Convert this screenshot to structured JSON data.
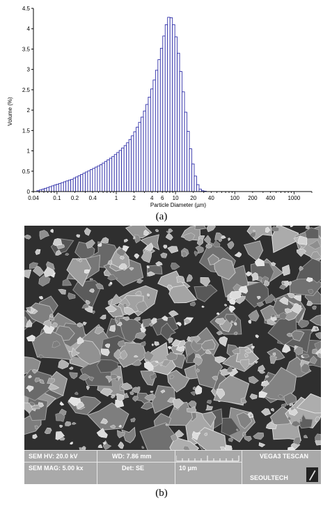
{
  "chart_data": {
    "type": "bar",
    "title": "",
    "xlabel": "Particle Diameter (µm)",
    "ylabel": "Volume (%)",
    "x_scale": "log",
    "xlim": [
      0.04,
      2000
    ],
    "ylim": [
      0,
      4.5
    ],
    "x_ticks": [
      0.04,
      0.1,
      0.2,
      0.4,
      1,
      2,
      4,
      6,
      10,
      20,
      40,
      100,
      200,
      400,
      1000
    ],
    "x_tick_labels": [
      "0.04",
      "0.1",
      "0.2",
      "0.4",
      "1",
      "2",
      "4",
      "6",
      "10",
      "20",
      "40",
      "100",
      "200",
      "400",
      "1000"
    ],
    "y_ticks": [
      0,
      0.5,
      1,
      1.5,
      2,
      2.5,
      3,
      3.5,
      4,
      4.5
    ],
    "y_tick_labels": [
      "0",
      "0.5",
      "1",
      "1.5",
      "2",
      "2.5",
      "3",
      "3.5",
      "4",
      "4.5"
    ],
    "grid": false,
    "bar_color": "#1a1aa0",
    "series": [
      {
        "x": [
          0.048,
          0.053,
          0.058,
          0.064,
          0.07,
          0.077,
          0.085,
          0.093,
          0.102,
          0.112,
          0.123,
          0.135,
          0.148,
          0.163,
          0.179,
          0.197,
          0.216,
          0.237,
          0.261,
          0.286,
          0.315,
          0.345,
          0.38,
          0.417,
          0.458,
          0.503,
          0.553,
          0.607,
          0.667,
          0.733,
          0.805,
          0.885,
          0.972,
          1.07,
          1.17,
          1.29,
          1.42,
          1.56,
          1.71,
          1.88,
          2.06,
          2.27,
          2.49,
          2.74,
          3.01,
          3.3,
          3.63,
          3.99,
          4.38,
          4.81,
          5.29,
          5.81,
          6.38,
          7.01,
          7.7,
          8.46,
          9.3,
          10.2,
          11.2,
          12.3,
          13.5,
          14.9,
          16.3,
          18.0,
          19.7,
          21.7,
          23.8,
          26.2,
          28.7,
          31.6,
          34.7
        ],
        "values": [
          0.02,
          0.04,
          0.06,
          0.08,
          0.1,
          0.12,
          0.14,
          0.16,
          0.18,
          0.2,
          0.22,
          0.24,
          0.26,
          0.28,
          0.3,
          0.33,
          0.36,
          0.39,
          0.42,
          0.45,
          0.48,
          0.51,
          0.54,
          0.57,
          0.6,
          0.63,
          0.66,
          0.7,
          0.74,
          0.78,
          0.82,
          0.86,
          0.91,
          0.96,
          1.01,
          1.07,
          1.13,
          1.2,
          1.28,
          1.37,
          1.47,
          1.58,
          1.7,
          1.83,
          1.98,
          2.14,
          2.32,
          2.52,
          2.74,
          2.98,
          3.24,
          3.52,
          3.82,
          4.1,
          4.28,
          4.27,
          4.1,
          3.8,
          3.4,
          2.95,
          2.45,
          1.95,
          1.48,
          1.05,
          0.68,
          0.38,
          0.17,
          0.06,
          0.02,
          0.01,
          0.0
        ]
      }
    ]
  },
  "captions": {
    "a": "(a)",
    "b": "(b)"
  },
  "sem": {
    "hv": "SEM HV: 20.0 kV",
    "wd": "WD: 7.86 mm",
    "mag": "SEM MAG: 5.00 kx",
    "det": "Det: SE",
    "scale": "10 μm",
    "brand": "VEGA3 TESCAN",
    "lab": "SEOULTECH"
  }
}
